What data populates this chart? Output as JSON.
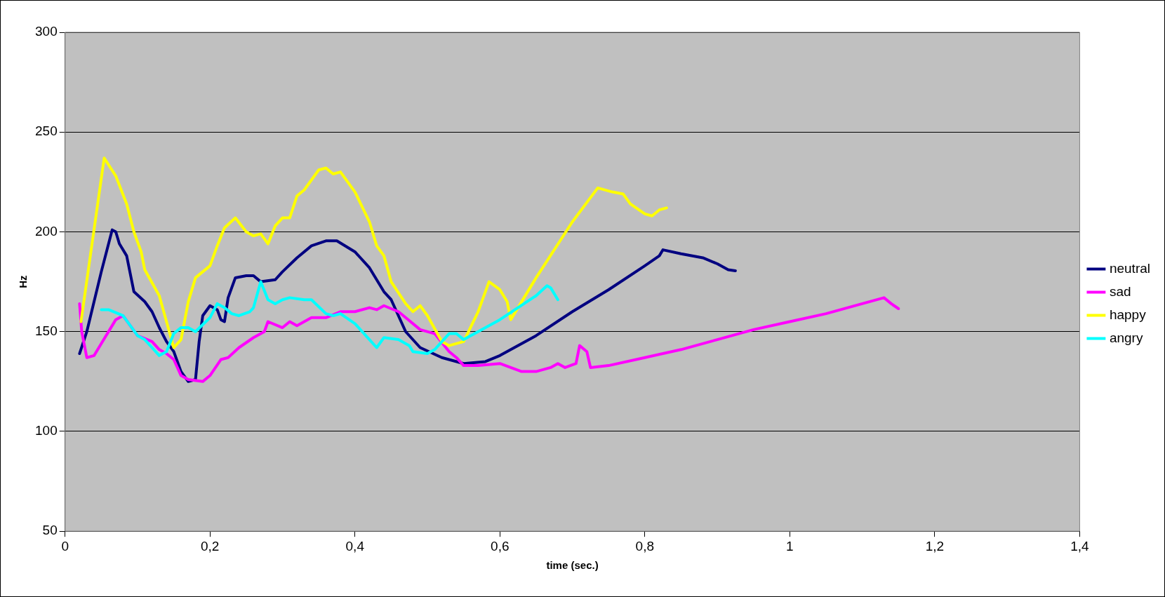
{
  "chart_data": {
    "type": "line",
    "xlabel": "time (sec.)",
    "ylabel": "Hz",
    "xlim": [
      0,
      1.4
    ],
    "ylim": [
      50,
      300
    ],
    "xticks": [
      0,
      {
        "value": 0.2,
        "label": "0,2"
      },
      {
        "value": 0.4,
        "label": "0,4"
      },
      {
        "value": 0.6,
        "label": "0,6"
      },
      {
        "value": 0.8,
        "label": "0,8"
      },
      1,
      {
        "value": 1.2,
        "label": "1,2"
      },
      {
        "value": 1.4,
        "label": "1,4"
      }
    ],
    "yticks": [
      50,
      100,
      150,
      200,
      250,
      300
    ],
    "grid": "y",
    "legend": "right",
    "marker": "none",
    "line_style": "solid",
    "series": [
      {
        "name": "neutral",
        "color": "#000080",
        "x": [
          0.02,
          0.03,
          0.05,
          0.065,
          0.07,
          0.075,
          0.085,
          0.095,
          0.11,
          0.12,
          0.13,
          0.14,
          0.15,
          0.16,
          0.17,
          0.18,
          0.185,
          0.19,
          0.2,
          0.21,
          0.215,
          0.22,
          0.225,
          0.235,
          0.25,
          0.26,
          0.27,
          0.29,
          0.3,
          0.32,
          0.34,
          0.36,
          0.375,
          0.4,
          0.42,
          0.44,
          0.45,
          0.47,
          0.49,
          0.52,
          0.55,
          0.58,
          0.6,
          0.65,
          0.7,
          0.75,
          0.8,
          0.82,
          0.825,
          0.85,
          0.88,
          0.9,
          0.915,
          0.925
        ],
        "values": [
          139,
          150,
          180,
          201,
          200,
          194,
          188,
          170,
          165,
          160,
          152,
          145,
          140,
          130,
          125,
          126,
          145,
          158,
          163,
          161,
          156,
          155,
          167,
          177,
          178,
          178,
          175,
          176,
          180,
          187,
          193,
          195.5,
          195.5,
          190,
          182,
          170,
          166,
          150,
          142,
          137,
          134,
          135,
          138,
          148,
          160,
          171,
          183,
          188,
          191,
          189,
          187,
          184,
          181,
          180.5
        ]
      },
      {
        "name": "sad",
        "color": "#ff00ff",
        "x": [
          0.02,
          0.023,
          0.03,
          0.04,
          0.05,
          0.07,
          0.08,
          0.1,
          0.12,
          0.13,
          0.14,
          0.15,
          0.16,
          0.17,
          0.19,
          0.2,
          0.215,
          0.225,
          0.24,
          0.26,
          0.275,
          0.28,
          0.3,
          0.31,
          0.32,
          0.34,
          0.36,
          0.38,
          0.4,
          0.42,
          0.43,
          0.44,
          0.46,
          0.47,
          0.49,
          0.51,
          0.53,
          0.54,
          0.55,
          0.57,
          0.6,
          0.63,
          0.65,
          0.67,
          0.68,
          0.69,
          0.705,
          0.71,
          0.72,
          0.725,
          0.75,
          0.8,
          0.85,
          0.9,
          0.95,
          1.0,
          1.05,
          1.1,
          1.13,
          1.14,
          1.15
        ],
        "values": [
          164,
          150,
          137,
          138,
          144,
          156,
          158,
          148,
          145,
          141,
          139,
          136,
          128,
          126,
          125,
          128,
          136,
          137,
          142,
          147,
          150,
          155,
          152,
          155,
          153,
          157,
          157,
          160,
          160,
          162,
          161,
          163,
          160,
          157,
          151,
          149,
          140,
          137,
          133,
          133,
          134,
          130,
          130,
          132,
          134,
          132,
          134,
          143,
          140,
          132,
          133,
          137,
          141,
          146,
          151,
          155,
          159,
          164,
          167,
          164,
          161.5
        ]
      },
      {
        "name": "happy",
        "color": "#ffff00",
        "x": [
          0.022,
          0.054,
          0.07,
          0.085,
          0.095,
          0.105,
          0.11,
          0.13,
          0.15,
          0.16,
          0.17,
          0.18,
          0.2,
          0.21,
          0.22,
          0.235,
          0.25,
          0.26,
          0.27,
          0.28,
          0.29,
          0.3,
          0.31,
          0.32,
          0.33,
          0.34,
          0.35,
          0.36,
          0.37,
          0.38,
          0.39,
          0.4,
          0.42,
          0.43,
          0.44,
          0.45,
          0.47,
          0.48,
          0.49,
          0.5,
          0.52,
          0.53,
          0.55,
          0.57,
          0.585,
          0.6,
          0.61,
          0.615,
          0.65,
          0.7,
          0.735,
          0.755,
          0.77,
          0.78,
          0.8,
          0.81,
          0.82,
          0.83
        ],
        "values": [
          155,
          237,
          228,
          214,
          200,
          190,
          181,
          168,
          142,
          146,
          165,
          177,
          183,
          193,
          202,
          207,
          200,
          198,
          199,
          194,
          203,
          207,
          207,
          218,
          221,
          226,
          231,
          232,
          229,
          230,
          225,
          220,
          205,
          193,
          188,
          175,
          164,
          160,
          163,
          158,
          145,
          143,
          145,
          160,
          175,
          171,
          165,
          156,
          177,
          205,
          222,
          220,
          219,
          214,
          209,
          208,
          211,
          212
        ]
      },
      {
        "name": "angry",
        "color": "#00ffff",
        "x": [
          0.05,
          0.06,
          0.08,
          0.09,
          0.1,
          0.11,
          0.12,
          0.13,
          0.14,
          0.15,
          0.16,
          0.17,
          0.18,
          0.2,
          0.21,
          0.22,
          0.23,
          0.24,
          0.255,
          0.26,
          0.27,
          0.28,
          0.29,
          0.3,
          0.31,
          0.33,
          0.34,
          0.36,
          0.37,
          0.38,
          0.4,
          0.42,
          0.43,
          0.44,
          0.46,
          0.475,
          0.48,
          0.5,
          0.51,
          0.52,
          0.53,
          0.54,
          0.55,
          0.6,
          0.65,
          0.665,
          0.67,
          0.68
        ],
        "values": [
          161,
          161,
          158,
          153,
          148,
          146,
          142,
          138,
          140,
          149,
          152,
          152,
          150,
          157,
          164,
          162,
          159,
          158,
          160,
          162,
          175,
          166,
          164,
          166,
          167,
          166,
          166,
          159,
          158,
          159,
          154,
          146,
          142,
          147,
          146,
          143,
          140,
          139,
          141,
          145,
          149,
          149,
          146,
          156,
          168,
          173,
          172,
          166
        ]
      }
    ]
  }
}
